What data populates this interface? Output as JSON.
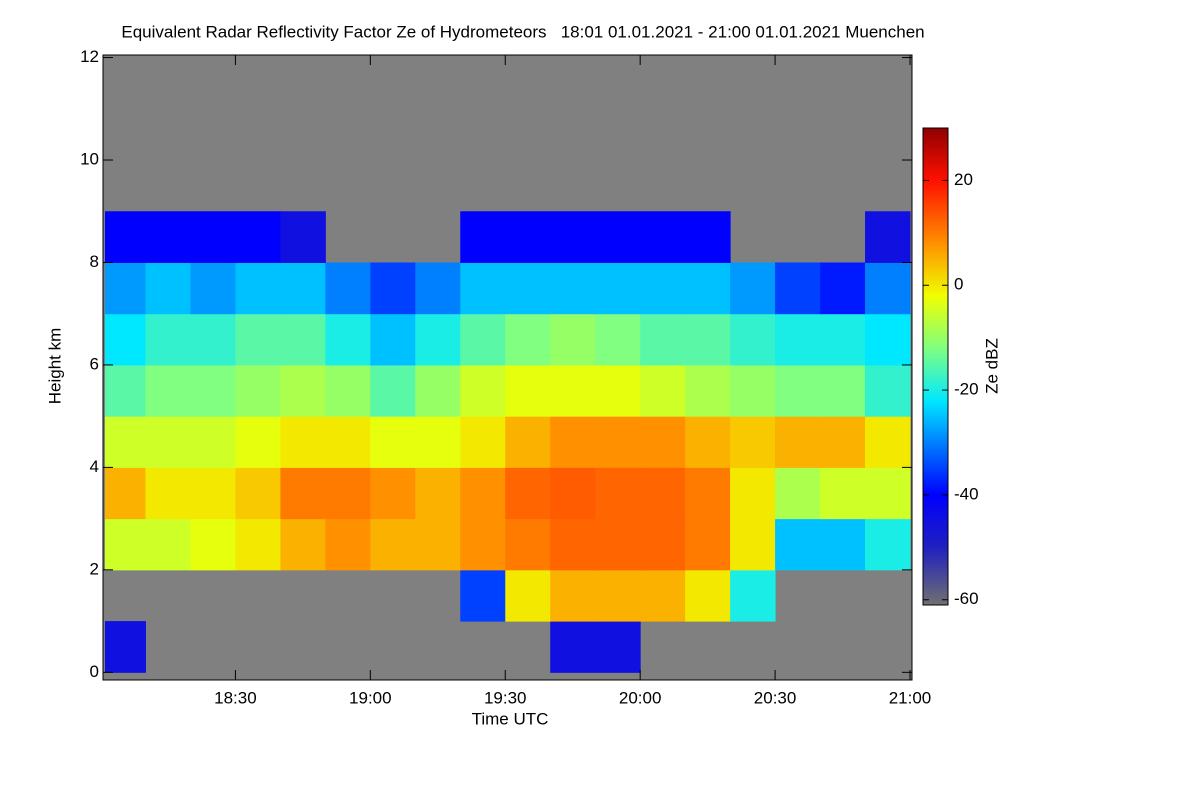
{
  "chart_data": {
    "type": "heatmap",
    "title": "Equivalent Radar Reflectivity Factor Ze of Hydrometeors   18:01 01.01.2021 - 21:00 01.01.2021 Muenchen",
    "x_label": "Time UTC",
    "y_label": "Height km",
    "colorbar_label": "Ze dBZ",
    "background": "#808080",
    "xlim": [
      1,
      180
    ],
    "xticks": [
      {
        "value": 30,
        "label": "18:30"
      },
      {
        "value": 60,
        "label": "19:00"
      },
      {
        "value": 90,
        "label": "19:30"
      },
      {
        "value": 120,
        "label": "20:00"
      },
      {
        "value": 150,
        "label": "20:30"
      },
      {
        "value": 180,
        "label": "21:00"
      }
    ],
    "ylim": [
      -0.15,
      12.05
    ],
    "yticks": [
      0,
      2,
      4,
      6,
      8,
      10,
      12
    ],
    "x_edges": [
      1,
      10,
      20,
      30,
      40,
      50,
      60,
      70,
      80,
      90,
      100,
      110,
      120,
      130,
      140,
      150,
      160,
      170,
      180
    ],
    "y_edges": [
      0,
      1,
      2,
      3,
      4,
      5,
      6,
      7,
      8,
      9,
      10,
      11,
      12
    ],
    "z": [
      [
        -45,
        null,
        null,
        null,
        null,
        null,
        null,
        null,
        null,
        null,
        -45,
        -45,
        null,
        null,
        null,
        null,
        null,
        null
      ],
      [
        null,
        null,
        null,
        null,
        null,
        null,
        null,
        null,
        -35,
        0,
        5,
        5,
        5,
        0,
        -20,
        null,
        null,
        null
      ],
      [
        -5,
        -5,
        -3,
        0,
        5,
        8,
        5,
        5,
        8,
        10,
        12,
        12,
        12,
        10,
        0,
        -25,
        -25,
        -20
      ],
      [
        5,
        0,
        0,
        3,
        10,
        10,
        8,
        5,
        8,
        12,
        13,
        12,
        12,
        10,
        0,
        -8,
        -5,
        -5
      ],
      [
        -5,
        -5,
        -5,
        -3,
        0,
        0,
        -3,
        -3,
        0,
        5,
        8,
        8,
        8,
        5,
        3,
        5,
        5,
        0
      ],
      [
        -15,
        -12,
        -12,
        -10,
        -8,
        -10,
        -15,
        -10,
        -5,
        -3,
        -3,
        -3,
        -5,
        -8,
        -10,
        -12,
        -12,
        -18
      ],
      [
        -22,
        -18,
        -18,
        -15,
        -15,
        -20,
        -25,
        -20,
        -15,
        -12,
        -10,
        -12,
        -15,
        -15,
        -18,
        -20,
        -20,
        -22
      ],
      [
        -28,
        -25,
        -28,
        -25,
        -25,
        -30,
        -35,
        -30,
        -25,
        -25,
        -25,
        -25,
        -25,
        -25,
        -28,
        -35,
        -38,
        -30
      ],
      [
        -40,
        -40,
        -40,
        -40,
        -45,
        null,
        null,
        null,
        -40,
        -40,
        -40,
        -40,
        -40,
        -40,
        null,
        null,
        null,
        -45
      ],
      [
        null,
        null,
        null,
        null,
        null,
        null,
        null,
        null,
        null,
        null,
        null,
        null,
        null,
        null,
        null,
        null,
        null,
        null
      ],
      [
        null,
        null,
        null,
        null,
        null,
        null,
        null,
        null,
        null,
        null,
        null,
        null,
        null,
        null,
        null,
        null,
        null,
        null
      ],
      [
        null,
        null,
        null,
        null,
        null,
        null,
        null,
        null,
        null,
        null,
        null,
        null,
        null,
        null,
        null,
        null,
        null,
        null
      ]
    ],
    "zlim": [
      -61,
      30
    ],
    "zticks": [
      -60,
      -40,
      -20,
      0,
      20
    ],
    "colorscale": [
      {
        "value": -61,
        "color": "#707070"
      },
      {
        "value": -50,
        "color": "#2020c0"
      },
      {
        "value": -40,
        "color": "#0000ff"
      },
      {
        "value": -30,
        "color": "#0080ff"
      },
      {
        "value": -22,
        "color": "#00e8ff"
      },
      {
        "value": -12,
        "color": "#80ff80"
      },
      {
        "value": -2,
        "color": "#f0ff00"
      },
      {
        "value": 8,
        "color": "#ff9000"
      },
      {
        "value": 20,
        "color": "#ff1000"
      },
      {
        "value": 30,
        "color": "#900000"
      }
    ]
  }
}
